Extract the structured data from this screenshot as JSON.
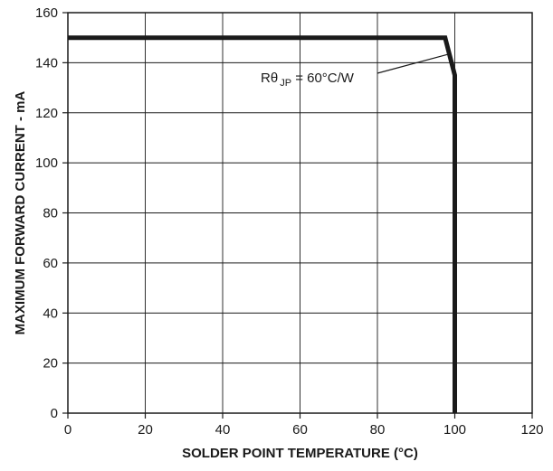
{
  "chart_data": {
    "type": "line",
    "xlabel": "SOLDER POINT TEMPERATURE (°C)",
    "ylabel": "MAXIMUM FORWARD CURRENT - mA",
    "xlim": [
      0,
      120
    ],
    "ylim": [
      0,
      160
    ],
    "xticks": [
      0,
      20,
      40,
      60,
      80,
      100,
      120
    ],
    "yticks": [
      0,
      20,
      40,
      60,
      80,
      100,
      120,
      140,
      160
    ],
    "grid": true,
    "series": [
      {
        "x": [
          0,
          97.5,
          100,
          100
        ],
        "y": [
          150,
          150,
          135,
          0
        ],
        "color": "#1a1a1a"
      }
    ],
    "annotations": [
      {
        "main": "Rθ",
        "sub": "JP",
        "rest": " = 60°C/W",
        "point_x": 98.6,
        "point_y": 143.5
      }
    ]
  }
}
